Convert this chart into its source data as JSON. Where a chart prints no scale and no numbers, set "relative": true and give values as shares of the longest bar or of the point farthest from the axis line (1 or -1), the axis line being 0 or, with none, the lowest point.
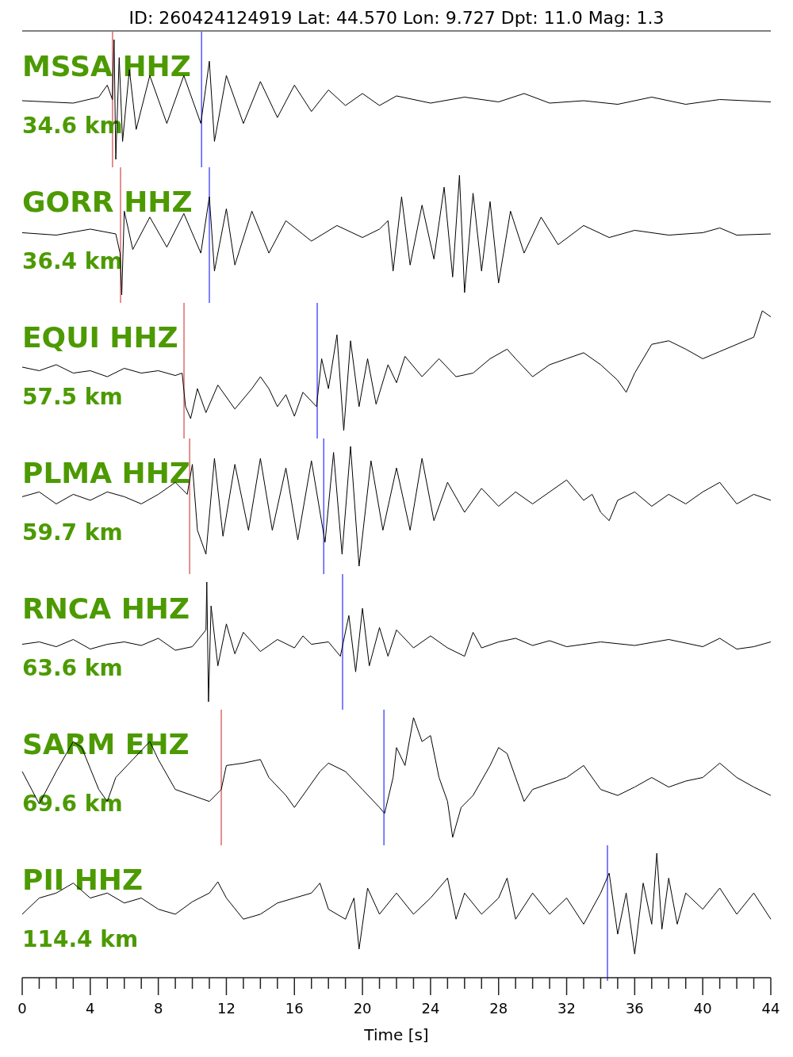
{
  "chart_data": [
    {
      "type": "line",
      "title": "ID: 260424124919 Lat:  44.570 Lon:   9.727 Dpt:    11.0 Mag:   1.3",
      "relative": true,
      "xlim": [
        0,
        44
      ],
      "annotations": [
        "MSSA HHZ",
        "34.6 km"
      ],
      "ref_lines": [
        {
          "axis": "x",
          "value": 5.31,
          "color": "#cc2222"
        },
        {
          "axis": "x",
          "value": 10.54,
          "color": "#0000ff"
        }
      ],
      "series": [
        {
          "color": "#000000",
          "x": [
            0,
            3,
            4.5,
            5,
            5.3,
            5.4,
            5.5,
            5.7,
            5.9,
            6.3,
            6.7,
            7.5,
            8.5,
            9.5,
            10.5,
            11,
            11.3,
            12,
            13,
            14,
            15,
            16,
            17,
            18,
            19,
            20,
            21,
            22,
            24,
            26,
            28,
            29.5,
            31,
            33,
            35,
            37,
            39,
            41,
            44
          ],
          "values": [
            0.49,
            0.47,
            0.52,
            0.62,
            0.5,
            1.0,
            0,
            0.85,
            0.15,
            0.75,
            0.25,
            0.7,
            0.3,
            0.7,
            0.3,
            0.82,
            0.15,
            0.7,
            0.3,
            0.65,
            0.35,
            0.62,
            0.4,
            0.58,
            0.45,
            0.55,
            0.45,
            0.53,
            0.47,
            0.52,
            0.48,
            0.55,
            0.47,
            0.49,
            0.46,
            0.52,
            0.46,
            0.5,
            0.48
          ]
        }
      ]
    },
    {
      "type": "line",
      "relative": true,
      "xlim": [
        0,
        44
      ],
      "annotations": [
        "GORR HHZ",
        "36.4 km"
      ],
      "ref_lines": [
        {
          "axis": "x",
          "value": 5.78,
          "color": "#cc2222"
        },
        {
          "axis": "x",
          "value": 11.0,
          "color": "#0000ff"
        }
      ],
      "series": [
        {
          "color": "#000000",
          "x": [
            0,
            2,
            4,
            5.5,
            5.75,
            5.85,
            6,
            6.5,
            7.5,
            8.5,
            9.5,
            10.5,
            11,
            11.3,
            12,
            12.5,
            13.5,
            14.5,
            15.5,
            17,
            18.5,
            20,
            21,
            21.5,
            21.8,
            22.3,
            22.8,
            23.5,
            24.2,
            24.8,
            25.3,
            25.7,
            26,
            26.5,
            27,
            27.5,
            28,
            28.7,
            29.5,
            30.5,
            31.5,
            33,
            34.5,
            36,
            38,
            40,
            41,
            42,
            44
          ],
          "values": [
            0.52,
            0.5,
            0.55,
            0.51,
            0.35,
            0,
            0.7,
            0.38,
            0.65,
            0.4,
            0.68,
            0.35,
            0.82,
            0.2,
            0.72,
            0.25,
            0.7,
            0.35,
            0.62,
            0.45,
            0.58,
            0.48,
            0.55,
            0.62,
            0.2,
            0.82,
            0.25,
            0.75,
            0.3,
            0.9,
            0.15,
            1.0,
            0.02,
            0.85,
            0.2,
            0.78,
            0.1,
            0.7,
            0.35,
            0.65,
            0.42,
            0.58,
            0.48,
            0.54,
            0.5,
            0.52,
            0.56,
            0.5,
            0.51
          ]
        }
      ]
    },
    {
      "type": "line",
      "relative": true,
      "xlim": [
        0,
        44
      ],
      "annotations": [
        "EQUI HHZ",
        "57.5 km"
      ],
      "ref_lines": [
        {
          "axis": "x",
          "value": 9.51,
          "color": "#cc2222"
        },
        {
          "axis": "x",
          "value": 17.34,
          "color": "#0000ff"
        }
      ],
      "series": [
        {
          "color": "#000000",
          "x": [
            0,
            1,
            2,
            3,
            4,
            5,
            6,
            7,
            8,
            9,
            9.4,
            9.6,
            9.9,
            10.3,
            10.8,
            11.5,
            12.5,
            13.5,
            14,
            14.5,
            15,
            15.5,
            16,
            16.5,
            17.3,
            17.6,
            18,
            18.5,
            18.9,
            19.3,
            19.8,
            20.3,
            20.8,
            21.5,
            22,
            22.5,
            23.5,
            24.5,
            25.5,
            26.5,
            27.5,
            28.5,
            29,
            30,
            31,
            32,
            33,
            34,
            35,
            35.5,
            36,
            37,
            38,
            39,
            40,
            41,
            42,
            43,
            43.5,
            44
          ],
          "values": [
            0.53,
            0.5,
            0.55,
            0.48,
            0.5,
            0.45,
            0.52,
            0.48,
            0.5,
            0.46,
            0.48,
            0.2,
            0.1,
            0.35,
            0.15,
            0.38,
            0.18,
            0.35,
            0.45,
            0.35,
            0.2,
            0.3,
            0.12,
            0.32,
            0.2,
            0.6,
            0.35,
            0.8,
            0,
            0.75,
            0.2,
            0.6,
            0.22,
            0.55,
            0.4,
            0.62,
            0.45,
            0.6,
            0.45,
            0.48,
            0.6,
            0.68,
            0.6,
            0.45,
            0.55,
            0.6,
            0.65,
            0.55,
            0.42,
            0.32,
            0.48,
            0.72,
            0.75,
            0.68,
            0.6,
            0.66,
            0.72,
            0.78,
            1.0,
            0.95
          ]
        }
      ]
    },
    {
      "type": "line",
      "relative": true,
      "xlim": [
        0,
        44
      ],
      "annotations": [
        "PLMA HHZ",
        "59.7 km"
      ],
      "ref_lines": [
        {
          "axis": "x",
          "value": 9.84,
          "color": "#cc2222"
        },
        {
          "axis": "x",
          "value": 17.72,
          "color": "#0000ff"
        }
      ],
      "series": [
        {
          "color": "#000000",
          "x": [
            0,
            1,
            2,
            3,
            4,
            5,
            6,
            7,
            8,
            9,
            9.7,
            10,
            10.3,
            10.8,
            11.3,
            11.8,
            12.5,
            13.3,
            14,
            14.7,
            15.5,
            16.2,
            17,
            17.8,
            18.3,
            18.8,
            19.3,
            19.8,
            20.5,
            21.2,
            22,
            22.8,
            23.5,
            24.2,
            25,
            26,
            27,
            28,
            29,
            30,
            31,
            32,
            33,
            33.5,
            34,
            34.5,
            35,
            36,
            37,
            38,
            39,
            40,
            41,
            42,
            43,
            44
          ],
          "values": [
            0.58,
            0.62,
            0.52,
            0.6,
            0.55,
            0.62,
            0.58,
            0.52,
            0.6,
            0.7,
            0.6,
            0.85,
            0.3,
            0.1,
            0.9,
            0.25,
            0.85,
            0.3,
            0.9,
            0.3,
            0.82,
            0.22,
            0.88,
            0.2,
            0.95,
            0.1,
            1.0,
            0,
            0.88,
            0.3,
            0.82,
            0.3,
            0.9,
            0.38,
            0.7,
            0.45,
            0.65,
            0.5,
            0.62,
            0.52,
            0.62,
            0.72,
            0.55,
            0.6,
            0.45,
            0.38,
            0.55,
            0.62,
            0.5,
            0.6,
            0.52,
            0.62,
            0.7,
            0.52,
            0.6,
            0.55
          ]
        }
      ]
    },
    {
      "type": "line",
      "relative": true,
      "xlim": [
        0,
        44
      ],
      "annotations": [
        "RNCA HHZ",
        "63.6 km"
      ],
      "ref_lines": [
        {
          "axis": "x",
          "value": 18.83,
          "color": "#0000ff"
        }
      ],
      "series": [
        {
          "color": "#000000",
          "x": [
            0,
            1,
            2,
            3,
            4,
            5,
            6,
            7,
            8,
            9,
            10,
            10.8,
            10.85,
            10.95,
            11.1,
            11.5,
            12,
            12.5,
            13,
            14,
            15,
            16,
            16.5,
            17,
            18,
            18.7,
            19.2,
            19.6,
            20,
            20.4,
            21,
            21.5,
            22,
            23,
            24,
            25,
            26,
            26.5,
            27,
            28,
            29,
            30,
            31,
            32,
            34,
            36,
            38,
            40,
            41,
            42,
            43,
            44
          ],
          "values": [
            0.48,
            0.5,
            0.46,
            0.52,
            0.44,
            0.48,
            0.5,
            0.47,
            0.53,
            0.43,
            0.46,
            0.6,
            1.0,
            0,
            0.8,
            0.3,
            0.65,
            0.4,
            0.58,
            0.42,
            0.52,
            0.45,
            0.55,
            0.48,
            0.5,
            0.38,
            0.72,
            0.25,
            0.78,
            0.3,
            0.62,
            0.38,
            0.6,
            0.45,
            0.55,
            0.45,
            0.38,
            0.58,
            0.45,
            0.5,
            0.53,
            0.47,
            0.51,
            0.46,
            0.5,
            0.47,
            0.52,
            0.46,
            0.53,
            0.44,
            0.46,
            0.5
          ]
        }
      ]
    },
    {
      "type": "line",
      "relative": true,
      "xlim": [
        0,
        44
      ],
      "annotations": [
        "SARM EHZ",
        "69.6 km"
      ],
      "ref_lines": [
        {
          "axis": "x",
          "value": 11.7,
          "color": "#cc2222"
        },
        {
          "axis": "x",
          "value": 21.26,
          "color": "#0000ff"
        }
      ],
      "series": [
        {
          "color": "#000000",
          "x": [
            0,
            1,
            2,
            3,
            3.5,
            4.5,
            5,
            5.5,
            6.5,
            7.5,
            8,
            9,
            10,
            11,
            11.7,
            12,
            13,
            14,
            14.5,
            15.5,
            16,
            17.5,
            18,
            19,
            20,
            21,
            21.3,
            21.8,
            22,
            22.5,
            23,
            23.5,
            24,
            24.5,
            25,
            25.3,
            25.8,
            26.5,
            27.5,
            28,
            28.5,
            29,
            29.5,
            30,
            31,
            32,
            33,
            34,
            35,
            36,
            37,
            38,
            39,
            40,
            41,
            42,
            43,
            44
          ],
          "values": [
            0.55,
            0.28,
            0.55,
            0.8,
            0.75,
            0.4,
            0.3,
            0.5,
            0.65,
            0.8,
            0.65,
            0.4,
            0.35,
            0.3,
            0.4,
            0.6,
            0.62,
            0.65,
            0.5,
            0.35,
            0.25,
            0.55,
            0.62,
            0.55,
            0.4,
            0.25,
            0.2,
            0.5,
            0.75,
            0.6,
            1.0,
            0.8,
            0.85,
            0.5,
            0.3,
            0,
            0.25,
            0.35,
            0.6,
            0.75,
            0.7,
            0.5,
            0.3,
            0.4,
            0.45,
            0.5,
            0.6,
            0.4,
            0.35,
            0.42,
            0.5,
            0.42,
            0.47,
            0.5,
            0.62,
            0.5,
            0.42,
            0.35
          ]
        }
      ]
    },
    {
      "type": "line",
      "relative": true,
      "xlim": [
        0,
        44
      ],
      "tick_labels": "x",
      "xlabel": "Time [s]",
      "annotations": [
        "PII HHZ",
        "114.4 km"
      ],
      "xticks": [
        0,
        {
          "value": 1,
          "label": null
        },
        {
          "value": 2,
          "label": null
        },
        {
          "value": 3,
          "label": null
        },
        4,
        {
          "value": 5,
          "label": null
        },
        {
          "value": 6,
          "label": null
        },
        {
          "value": 7,
          "label": null
        },
        8,
        {
          "value": 9,
          "label": null
        },
        {
          "value": 10,
          "label": null
        },
        {
          "value": 11,
          "label": null
        },
        12,
        {
          "value": 13,
          "label": null
        },
        {
          "value": 14,
          "label": null
        },
        {
          "value": 15,
          "label": null
        },
        16,
        {
          "value": 17,
          "label": null
        },
        {
          "value": 18,
          "label": null
        },
        {
          "value": 19,
          "label": null
        },
        20,
        {
          "value": 21,
          "label": null
        },
        {
          "value": 22,
          "label": null
        },
        {
          "value": 23,
          "label": null
        },
        24,
        {
          "value": 25,
          "label": null
        },
        {
          "value": 26,
          "label": null
        },
        {
          "value": 27,
          "label": null
        },
        28,
        {
          "value": 29,
          "label": null
        },
        {
          "value": 30,
          "label": null
        },
        {
          "value": 31,
          "label": null
        },
        32,
        {
          "value": 33,
          "label": null
        },
        {
          "value": 34,
          "label": null
        },
        {
          "value": 35,
          "label": null
        },
        36,
        {
          "value": 37,
          "label": null
        },
        {
          "value": 38,
          "label": null
        },
        {
          "value": 39,
          "label": null
        },
        40,
        {
          "value": 41,
          "label": null
        },
        {
          "value": 42,
          "label": null
        },
        {
          "value": 43,
          "label": null
        },
        44
      ],
      "ref_lines": [
        {
          "axis": "x",
          "value": 34.4,
          "color": "#0000ff"
        }
      ],
      "series": [
        {
          "color": "#000000",
          "x": [
            0,
            1,
            2,
            3,
            4,
            5,
            6,
            7,
            8,
            9,
            10,
            11,
            11.5,
            12,
            13,
            14,
            15,
            16,
            17,
            17.5,
            18,
            19,
            19.5,
            19.8,
            20.3,
            21,
            22,
            23,
            24,
            25,
            25.5,
            26,
            27,
            28,
            28.5,
            29,
            30,
            31,
            32,
            33,
            34,
            34.5,
            35,
            35.5,
            36,
            36.5,
            37,
            37.3,
            37.6,
            38,
            38.5,
            39,
            40,
            41,
            42,
            43,
            44
          ],
          "values": [
            0.51,
            0.64,
            0.68,
            0.76,
            0.64,
            0.68,
            0.6,
            0.64,
            0.55,
            0.51,
            0.61,
            0.68,
            0.77,
            0.64,
            0.47,
            0.51,
            0.6,
            0.64,
            0.68,
            0.76,
            0.55,
            0.47,
            0.64,
            0.23,
            0.72,
            0.51,
            0.68,
            0.51,
            0.64,
            0.8,
            0.47,
            0.68,
            0.51,
            0.64,
            0.8,
            0.47,
            0.68,
            0.51,
            0.64,
            0.43,
            0.68,
            0.84,
            0.35,
            0.68,
            0.19,
            0.76,
            0.43,
            1.0,
            0.39,
            0.8,
            0.43,
            0.68,
            0.55,
            0.72,
            0.51,
            0.68,
            0.47
          ]
        }
      ]
    }
  ]
}
